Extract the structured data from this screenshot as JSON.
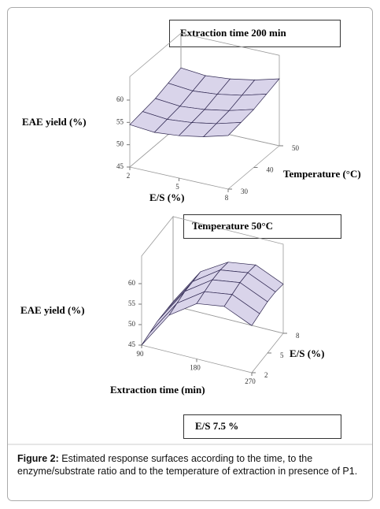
{
  "chart_data": [
    {
      "type": "surface",
      "title": "Extraction time 200 min",
      "zlabel": "EAE yield (%)",
      "xlabel": "E/S (%)",
      "ylabel": "Temperature (°C)",
      "x": [
        2,
        3.5,
        5,
        6.5,
        8
      ],
      "y": [
        30,
        35,
        40,
        45,
        50
      ],
      "z": [
        [
          54.5,
          54,
          54.5,
          55.5,
          57
        ],
        [
          55,
          54.5,
          55,
          56,
          57.5
        ],
        [
          55.5,
          55,
          55.5,
          56.5,
          58
        ],
        [
          56.5,
          56,
          56.5,
          57.5,
          59
        ],
        [
          57.5,
          57,
          57.5,
          58.5,
          60
        ]
      ],
      "xlim": [
        2,
        8
      ],
      "xticks": [
        2,
        5,
        8
      ],
      "ylim": [
        30,
        50
      ],
      "yticks": [
        30,
        40,
        50
      ],
      "zlim": [
        45,
        60
      ],
      "zticks": [
        45,
        50,
        55,
        60
      ],
      "color": "#d9d4ea"
    },
    {
      "type": "surface",
      "title": "Temperature 50°C",
      "zlabel": "EAE yield (%)",
      "xlabel": "Extraction time (min)",
      "ylabel": "E/S (%)",
      "x": [
        90,
        135,
        180,
        225,
        270
      ],
      "y": [
        2,
        3.5,
        5,
        6.5,
        8
      ],
      "z": [
        [
          45,
          54,
          58.5,
          59.5,
          56.5
        ],
        [
          45.5,
          54.5,
          59,
          60,
          57
        ],
        [
          46,
          55,
          59.5,
          60.5,
          57.5
        ],
        [
          46,
          55,
          59.5,
          60.5,
          57.5
        ],
        [
          46,
          55,
          59,
          60,
          57
        ]
      ],
      "xlim": [
        90,
        270
      ],
      "xticks": [
        90,
        180,
        270
      ],
      "ylim": [
        2,
        8
      ],
      "yticks": [
        2,
        5,
        8
      ],
      "zlim": [
        45,
        60
      ],
      "zticks": [
        45,
        50,
        55,
        60
      ],
      "color": "#d9d4ea"
    },
    {
      "type": "surface",
      "title": "E/S 7.5 %"
    }
  ],
  "caption": {
    "label": "Figure 2:",
    "text": "Estimated response surfaces according to the time, to the enzyme/substrate ratio and to the temperature of extraction in presence of P1."
  }
}
